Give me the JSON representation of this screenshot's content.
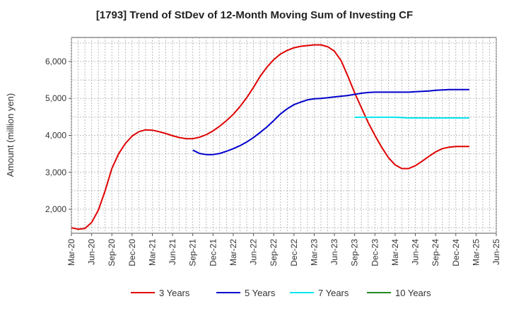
{
  "chart_data": {
    "type": "line",
    "title": "[1793]  Trend of StDev of 12-Month Moving Sum of Investing CF",
    "xlabel": "",
    "ylabel": "Amount (million yen)",
    "x_ticks": [
      "Mar-20",
      "Jun-20",
      "Sep-20",
      "Dec-20",
      "Mar-21",
      "Jun-21",
      "Sep-21",
      "Dec-21",
      "Mar-22",
      "Jun-22",
      "Sep-22",
      "Dec-22",
      "Mar-23",
      "Jun-23",
      "Sep-23",
      "Dec-23",
      "Mar-24",
      "Jun-24",
      "Sep-24",
      "Dec-24",
      "Mar-25",
      "Jun-25"
    ],
    "y_ticks": [
      2000,
      3000,
      4000,
      5000,
      6000
    ],
    "y_tick_labels": [
      "2,000",
      "3,000",
      "4,000",
      "5,000",
      "6,000"
    ],
    "ylim": [
      1350,
      6650
    ],
    "grid": true,
    "legend_position": "bottom",
    "series": [
      {
        "name": "3 Years",
        "color": "#e00000",
        "start_index": 0,
        "values": [
          1500,
          1460,
          1480,
          1640,
          1980,
          2500,
          3100,
          3500,
          3780,
          3980,
          4100,
          4150,
          4140,
          4100,
          4050,
          3990,
          3940,
          3910,
          3910,
          3950,
          4020,
          4120,
          4250,
          4400,
          4570,
          4780,
          5020,
          5300,
          5600,
          5850,
          6050,
          6200,
          6300,
          6370,
          6410,
          6430,
          6450,
          6450,
          6400,
          6280,
          6020,
          5600,
          5150,
          4750,
          4350,
          4000,
          3680,
          3400,
          3200,
          3100,
          3100,
          3180,
          3300,
          3430,
          3550,
          3640,
          3680,
          3700,
          3700,
          3700
        ]
      },
      {
        "name": "5 Years",
        "color": "#0000cc",
        "start_index": 18,
        "values": [
          3600,
          3510,
          3480,
          3480,
          3510,
          3570,
          3640,
          3720,
          3820,
          3940,
          4080,
          4230,
          4400,
          4580,
          4720,
          4830,
          4900,
          4960,
          4990,
          5000,
          5020,
          5040,
          5060,
          5080,
          5110,
          5140,
          5160,
          5170,
          5170,
          5170,
          5170,
          5170,
          5170,
          5180,
          5190,
          5200,
          5220,
          5230,
          5240,
          5240,
          5240,
          5240
        ]
      },
      {
        "name": "7 Years",
        "color": "#00e5ee",
        "start_index": 42,
        "values": [
          4490,
          4490,
          4490,
          4490,
          4490,
          4490,
          4490,
          4480,
          4470,
          4470,
          4470,
          4470,
          4470,
          4470,
          4470,
          4470,
          4470,
          4470
        ]
      },
      {
        "name": "10 Years",
        "color": "#228b22",
        "start_index": 0,
        "values": []
      }
    ]
  }
}
